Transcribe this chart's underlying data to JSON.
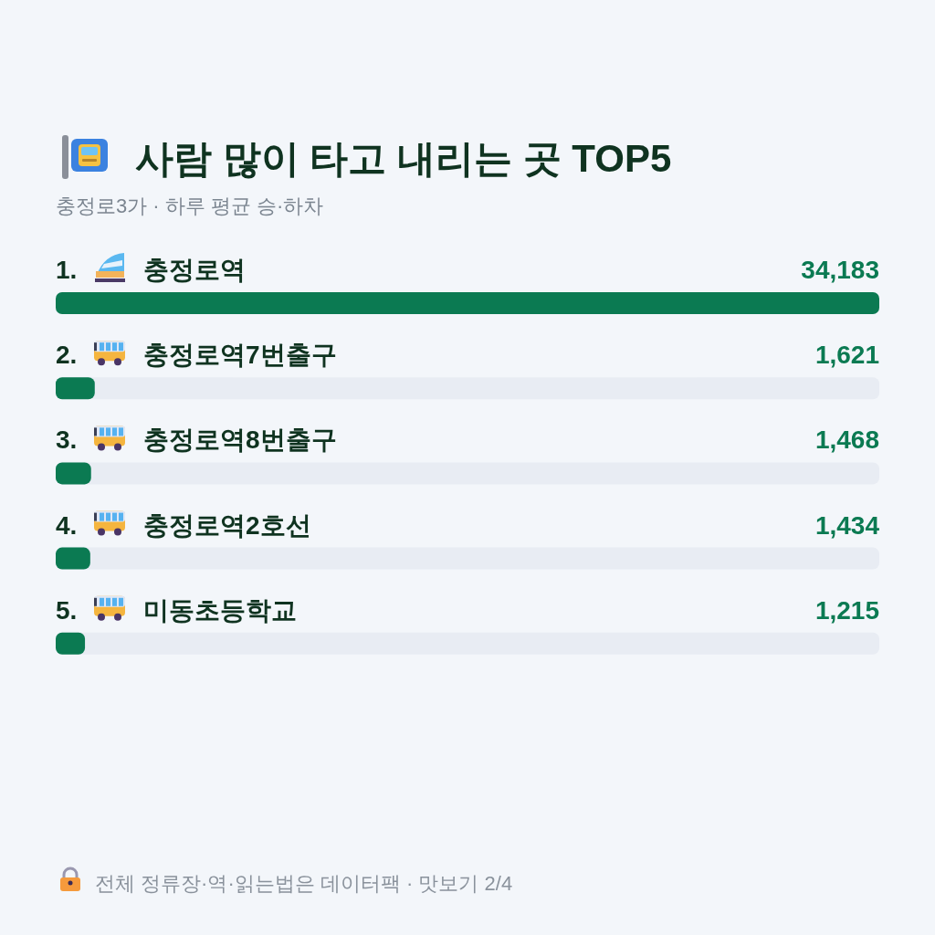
{
  "chart_data": {
    "type": "bar",
    "orientation": "horizontal",
    "title": "사람 많이 타고 내리는 곳 TOP5",
    "subtitle": "충정로3가 · 하루 평균 승·하차",
    "categories": [
      "1. 충정로역",
      "2. 충정로역7번출구",
      "3. 충정로역8번출구",
      "4. 충정로역2호선",
      "5. 미동초등학교"
    ],
    "values": [
      34183,
      1621,
      1468,
      1434,
      1215
    ],
    "value_labels": [
      "34,183",
      "1,621",
      "1,468",
      "1,434",
      "1,215"
    ],
    "color": "#0b7a52",
    "annotations": [
      "전체 정류장·역·읽는법은 데이터팩 · 맛보기 2/4"
    ]
  }
}
